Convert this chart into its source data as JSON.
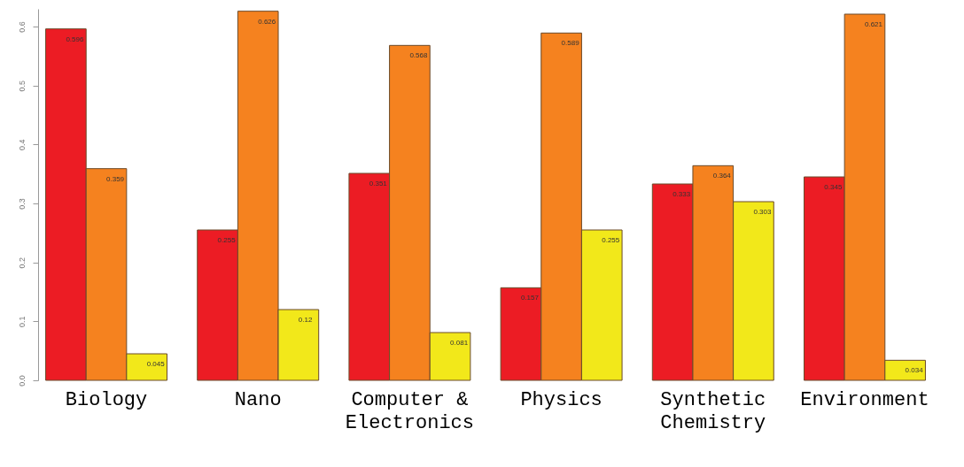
{
  "chart_data": {
    "type": "bar",
    "categories": [
      "Biology",
      "Nano",
      "Computer & Electronics",
      "Physics",
      "Synthetic Chemistry",
      "Environment"
    ],
    "series": [
      {
        "color": "#ec1c24",
        "values": [
          0.596,
          0.255,
          0.351,
          0.157,
          0.333,
          0.345
        ]
      },
      {
        "color": "#f5821f",
        "values": [
          0.359,
          0.626,
          0.568,
          0.589,
          0.364,
          0.621
        ]
      },
      {
        "color": "#f2e81a",
        "values": [
          0.045,
          0.12,
          0.081,
          0.255,
          0.303,
          0.034
        ]
      }
    ],
    "ylim": [
      0,
      0.63
    ],
    "yticks": [
      {
        "value": 0,
        "label": "0.0"
      },
      {
        "value": 0.1,
        "label": "0.1"
      },
      {
        "value": 0.2,
        "label": "0.2"
      },
      {
        "value": 0.3,
        "label": "0.3"
      },
      {
        "value": 0.4,
        "label": "0.4"
      },
      {
        "value": 0.5,
        "label": "0.5"
      },
      {
        "value": 0.6,
        "label": "0.6"
      }
    ],
    "grid": false,
    "legend": false,
    "data_labels": true
  }
}
